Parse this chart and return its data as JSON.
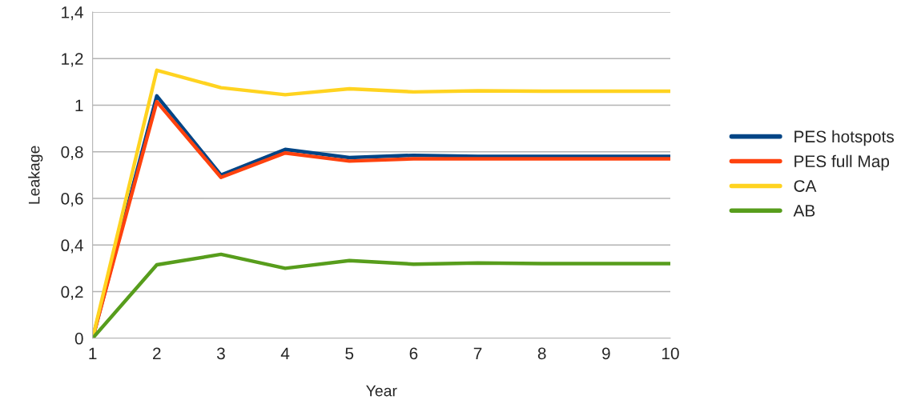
{
  "chart_data": {
    "type": "line",
    "xlabel": "Year",
    "ylabel": "Leakage",
    "x": [
      1,
      2,
      3,
      4,
      5,
      6,
      7,
      8,
      9,
      10
    ],
    "series": [
      {
        "name": "PES hotspots",
        "color": "#004586",
        "values": [
          0,
          1.04,
          0.7,
          0.81,
          0.775,
          0.785,
          0.78,
          0.78,
          0.78,
          0.78
        ]
      },
      {
        "name": "PES full Map",
        "color": "#ff420e",
        "values": [
          0,
          1.015,
          0.69,
          0.795,
          0.76,
          0.77,
          0.77,
          0.77,
          0.77,
          0.77
        ]
      },
      {
        "name": "CA",
        "color": "#ffd320",
        "values": [
          0,
          1.15,
          1.075,
          1.045,
          1.07,
          1.057,
          1.062,
          1.06,
          1.06,
          1.06
        ]
      },
      {
        "name": "AB",
        "color": "#579d1c",
        "values": [
          0,
          0.315,
          0.36,
          0.3,
          0.333,
          0.318,
          0.323,
          0.32,
          0.32,
          0.32
        ]
      }
    ],
    "xlim": [
      1,
      10
    ],
    "xticks": [
      1,
      2,
      3,
      4,
      5,
      6,
      7,
      8,
      9,
      10
    ],
    "ylim": [
      0,
      1.4
    ],
    "yticks": [
      {
        "value": 0,
        "label": "0"
      },
      {
        "value": 0.2,
        "label": "0,2"
      },
      {
        "value": 0.4,
        "label": "0,4"
      },
      {
        "value": 0.6,
        "label": "0,6"
      },
      {
        "value": 0.8,
        "label": "0,8"
      },
      {
        "value": 1,
        "label": "1"
      },
      {
        "value": 1.2,
        "label": "1,2"
      },
      {
        "value": 1.4,
        "label": "1,4"
      }
    ],
    "grid": "y",
    "legend": "right",
    "marker": "none",
    "line_style": "solid"
  }
}
